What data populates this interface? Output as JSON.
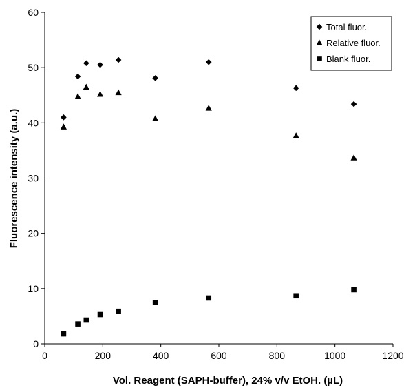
{
  "chart_data": {
    "type": "scatter",
    "title": "",
    "xlabel": "Vol. Reagent (SAPH-buffer), 24% v/v EtOH.   (µL)",
    "ylabel": "Fluorescence intensity (a.u.)",
    "xlim": [
      0,
      1200
    ],
    "ylim": [
      0,
      60
    ],
    "xticks": [
      0,
      200,
      400,
      600,
      800,
      1000,
      1200
    ],
    "yticks": [
      0,
      10,
      20,
      30,
      40,
      50,
      60
    ],
    "grid": false,
    "legend_position": "top-right",
    "series": [
      {
        "name": "Total fluor.",
        "marker": "diamond",
        "color": "#000000",
        "points": [
          {
            "x": 65,
            "y": 41.0
          },
          {
            "x": 114,
            "y": 48.4
          },
          {
            "x": 143,
            "y": 50.8
          },
          {
            "x": 191,
            "y": 50.5
          },
          {
            "x": 254,
            "y": 51.4
          },
          {
            "x": 381,
            "y": 48.1
          },
          {
            "x": 565,
            "y": 51.0
          },
          {
            "x": 866,
            "y": 46.3
          },
          {
            "x": 1065,
            "y": 43.4
          }
        ]
      },
      {
        "name": "Relative fluor.",
        "marker": "triangle",
        "color": "#000000",
        "points": [
          {
            "x": 65,
            "y": 39.3
          },
          {
            "x": 114,
            "y": 44.8
          },
          {
            "x": 143,
            "y": 46.5
          },
          {
            "x": 191,
            "y": 45.2
          },
          {
            "x": 254,
            "y": 45.5
          },
          {
            "x": 381,
            "y": 40.8
          },
          {
            "x": 565,
            "y": 42.7
          },
          {
            "x": 866,
            "y": 37.7
          },
          {
            "x": 1065,
            "y": 33.7
          }
        ]
      },
      {
        "name": "Blank fluor.",
        "marker": "square",
        "color": "#000000",
        "points": [
          {
            "x": 65,
            "y": 1.8
          },
          {
            "x": 114,
            "y": 3.6
          },
          {
            "x": 143,
            "y": 4.3
          },
          {
            "x": 191,
            "y": 5.3
          },
          {
            "x": 254,
            "y": 5.9
          },
          {
            "x": 381,
            "y": 7.5
          },
          {
            "x": 565,
            "y": 8.3
          },
          {
            "x": 866,
            "y": 8.7
          },
          {
            "x": 1065,
            "y": 9.8
          }
        ]
      }
    ]
  }
}
